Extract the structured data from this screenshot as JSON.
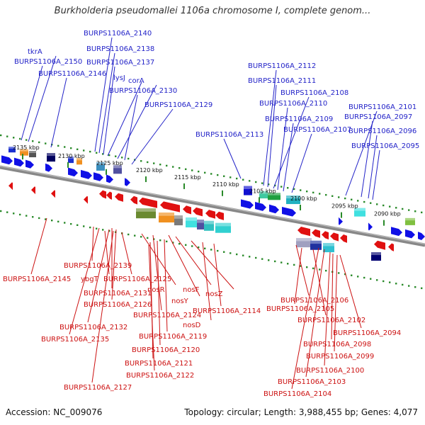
{
  "header": {
    "title": "Burkholderia pseudomallei 1106a chromosome I, complete genom..."
  },
  "footer": {
    "accession": "Accession: NC_009076",
    "summary": "Topology: circular; Length: 3,988,455 bp; Genes: 4,077"
  },
  "colors": {
    "upper_label": "#2323c8",
    "lower_label": "#cc1111",
    "backbone": "#888888",
    "tick": "#2a8a2a"
  },
  "scale_ticks": [
    "2135 kbp",
    "2130 kbp",
    "2125 kbp",
    "2120 kbp",
    "2115 kbp",
    "2110 kbp",
    "2105 kbp",
    "2100 kbp",
    "2095 kbp",
    "2090 kbp"
  ],
  "upper_labels": [
    "tkrA",
    "BURPS1106A_2150",
    "BURPS1106A_2146",
    "BURPS1106A_2140",
    "BURPS1106A_2138",
    "BURPS1106A_2137",
    "lysJ",
    "corA",
    "BURPS1106A_2130",
    "BURPS1106A_2129",
    "BURPS1106A_2113",
    "BURPS1106A_2112",
    "BURPS1106A_2111",
    "BURPS1106A_2108",
    "BURPS1106A_2110",
    "BURPS1106A_2109",
    "BURPS1106A_2107",
    "BURPS1106A_2101",
    "BURPS1106A_2097",
    "BURPS1106A_2096",
    "BURPS1106A_2095"
  ],
  "lower_labels": [
    "BURPS1106A_2139",
    "BURPS1106A_2145",
    "ybgT",
    "BURPS1106A_2125",
    "BURPS1106A_2131",
    "nosR",
    "nosF",
    "nosZ",
    "BURPS1106A_2126",
    "nosY",
    "BURPS1106A_2114",
    "BURPS1106A_2124",
    "nosD",
    "BURPS1106A_2132",
    "BURPS1106A_2119",
    "BURPS1106A_2135",
    "BURPS1106A_2120",
    "BURPS1106A_2121",
    "BURPS1106A_2122",
    "BURPS1106A_2127",
    "BURPS1106A_2106",
    "BURPS1106A_2105",
    "BURPS1106A_2102",
    "BURPS1106A_2094",
    "BURPS1106A_2098",
    "BURPS1106A_2099",
    "BURPS1106A_2100",
    "BURPS1106A_2103",
    "BURPS1106A_2104"
  ]
}
